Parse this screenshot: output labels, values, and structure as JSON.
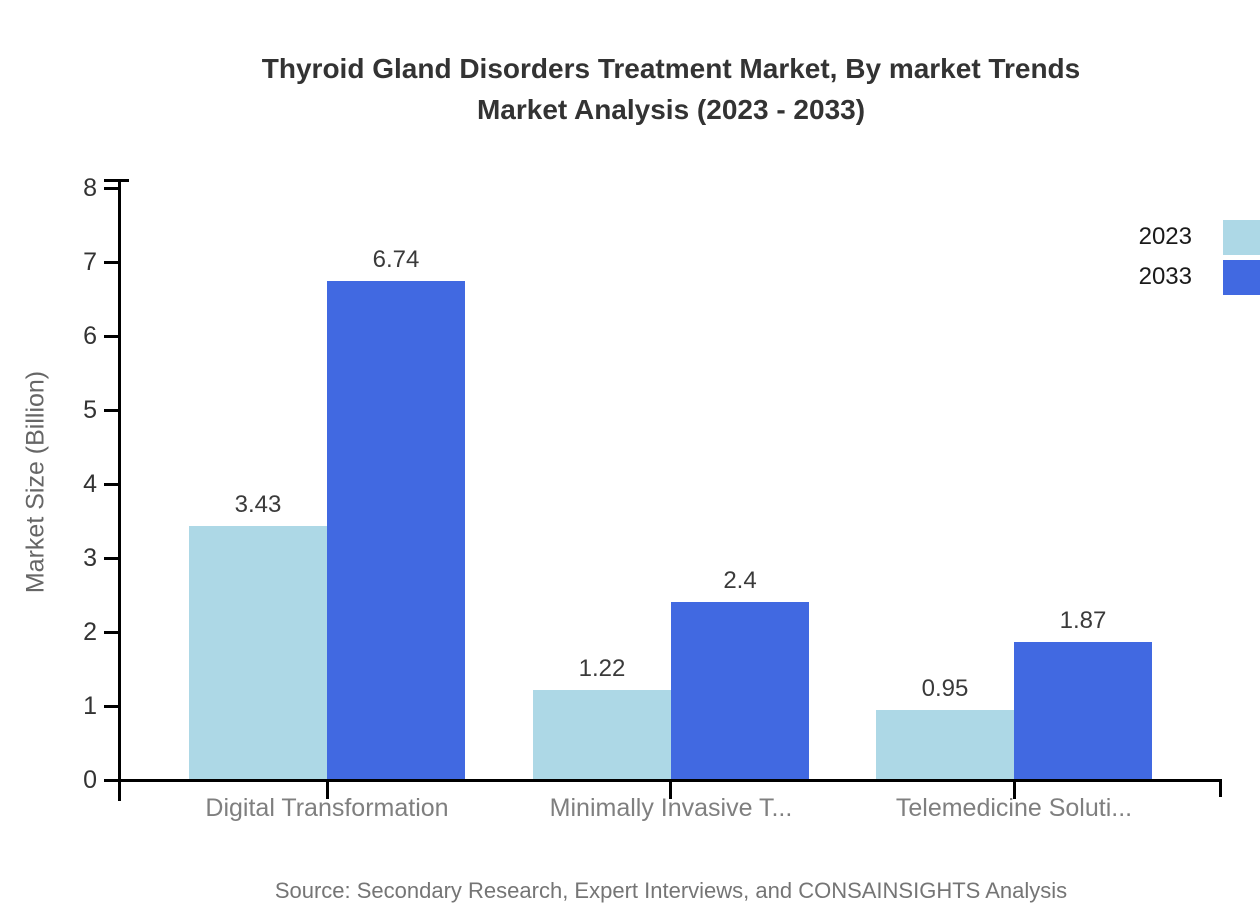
{
  "page": {
    "title_line1": "Thyroid Gland Disorders Treatment Market, By market Trends",
    "title_line2": "Market Analysis (2023 - 2033)",
    "source": "Source: Secondary Research, Expert Interviews, and CONSAINSIGHTS Analysis"
  },
  "chart_data": {
    "type": "bar",
    "title": "Thyroid Gland Disorders Treatment Market, By market Trends Market Analysis (2023 - 2033)",
    "categories": [
      "Digital Transformation",
      "Minimally Invasive T...",
      "Telemedicine Soluti..."
    ],
    "series": [
      {
        "name": "2023",
        "color": "#ADD8E6",
        "values": [
          3.43,
          1.22,
          0.95
        ]
      },
      {
        "name": "2033",
        "color": "#4169E1",
        "values": [
          6.74,
          2.4,
          1.87
        ]
      }
    ],
    "xlabel": "",
    "ylabel": "Market Size (Billion)",
    "ylim": [
      0,
      8
    ],
    "yticks": [
      0,
      1,
      2,
      3,
      4,
      5,
      6,
      7,
      8
    ],
    "grid": false,
    "legend_position": "top-right",
    "value_labels_shown": true
  },
  "colors": {
    "series_2023": "#ADD8E6",
    "series_2033": "#4169E1",
    "axis_line": "#000000",
    "title_text": "#333333",
    "tick_label": "#333333",
    "category_label": "#7f7f7f",
    "value_label": "#3a3a3a",
    "legend_label": "#1a1a1a",
    "axis_title": "#666666",
    "source_text": "#757575"
  }
}
